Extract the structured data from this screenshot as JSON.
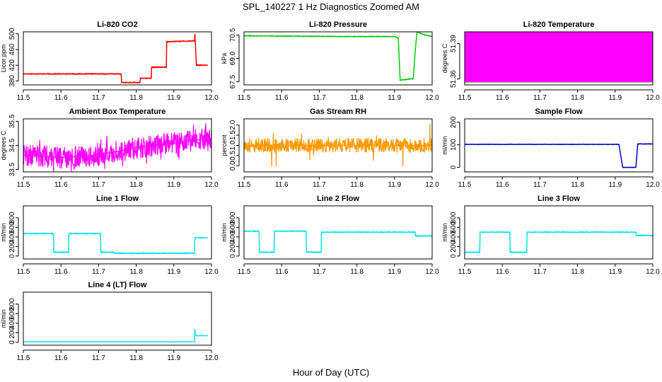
{
  "figure": {
    "title": "SPL_140227  1 Hz Diagnostics Zoomed AM",
    "xlabel": "Hour of Day (UTC)"
  },
  "chart_data": [
    {
      "type": "line",
      "id": "licor-co2",
      "title": "Li-820 CO2",
      "ylabel": "Licor ppm",
      "color": "#ff0000",
      "xlim": [
        11.5,
        12.0
      ],
      "ylim": [
        370,
        505
      ],
      "xticks": [
        "11.5",
        "11.6",
        "11.7",
        "11.8",
        "11.9",
        "12.0"
      ],
      "yticks": [
        "380",
        "420",
        "460",
        "500"
      ],
      "x": [
        11.5,
        11.76,
        11.761,
        11.81,
        11.811,
        11.84,
        11.841,
        11.88,
        11.881,
        11.955,
        11.956,
        11.96,
        11.961,
        11.99
      ],
      "y": [
        398,
        398,
        376,
        376,
        387,
        387,
        415,
        415,
        480,
        482,
        500,
        420,
        420,
        420
      ],
      "noise": 1.5
    },
    {
      "type": "line",
      "id": "licor-pressure",
      "title": "Li-820 Pressure",
      "ylabel": "kPa",
      "color": "#00cc00",
      "xlim": [
        11.5,
        12.0
      ],
      "ylim": [
        67.3,
        70.7
      ],
      "xticks": [
        "11.5",
        "11.6",
        "11.7",
        "11.8",
        "11.9",
        "12.0"
      ],
      "yticks": [
        "67.5",
        "69.0",
        "70.5"
      ],
      "x": [
        11.5,
        11.75,
        11.9,
        11.91,
        11.915,
        11.93,
        11.95,
        11.955,
        11.96,
        11.98,
        12.0
      ],
      "y": [
        70.45,
        70.4,
        70.4,
        70.3,
        67.6,
        67.65,
        67.7,
        69.5,
        70.7,
        70.5,
        70.4
      ],
      "noise": 0.03
    },
    {
      "type": "band",
      "id": "licor-temperature",
      "title": "Li-820 Temperature",
      "ylabel": "degrees C",
      "color": "#ff00ff",
      "xlim": [
        11.5,
        12.0
      ],
      "ylim": [
        51.355,
        51.4
      ],
      "xticks": [
        "11.5",
        "11.6",
        "11.7",
        "11.8",
        "11.9",
        "12.0"
      ],
      "yticks": [
        "51.36",
        "51.39"
      ],
      "x": [
        11.5,
        12.0
      ],
      "ymin": [
        51.357,
        51.357
      ],
      "ymax": [
        51.4,
        51.4
      ]
    },
    {
      "type": "line",
      "id": "ambient-box-temperature",
      "title": "Ambient Box Temperature",
      "ylabel": "degrees C",
      "color": "#ff00ff",
      "xlim": [
        11.5,
        12.0
      ],
      "ylim": [
        33.4,
        35.6
      ],
      "xticks": [
        "11.5",
        "11.6",
        "11.7",
        "11.8",
        "11.9",
        "12.0"
      ],
      "yticks": [
        "33.5",
        "34.5",
        "35.5"
      ],
      "x": [
        11.5,
        11.6,
        11.7,
        11.8,
        11.9,
        12.0
      ],
      "y": [
        34.1,
        34.0,
        34.1,
        34.4,
        34.6,
        34.8
      ],
      "noise": 0.45
    },
    {
      "type": "line",
      "id": "gas-stream-rh",
      "title": "Gas Stream RH",
      "ylabel": "percent",
      "color": "#ff9900",
      "xlim": [
        11.5,
        12.0
      ],
      "ylim": [
        -0.3,
        2.3
      ],
      "xticks": [
        "11.5",
        "11.6",
        "11.7",
        "11.8",
        "11.9",
        "12.0"
      ],
      "yticks": [
        "0.0",
        "0.5",
        "1.0",
        "1.5",
        "2.0"
      ],
      "x": [
        11.5,
        11.6,
        11.7,
        11.8,
        11.9,
        12.0
      ],
      "y": [
        1.0,
        1.0,
        1.0,
        1.0,
        1.0,
        1.0
      ],
      "noise": 0.35
    },
    {
      "type": "line",
      "id": "sample-flow",
      "title": "Sample Flow",
      "ylabel": "ml/min",
      "color": "#0000cc",
      "xlim": [
        11.5,
        12.0
      ],
      "ylim": [
        -20,
        215
      ],
      "xticks": [
        "11.5",
        "11.6",
        "11.7",
        "11.8",
        "11.9",
        "12.0"
      ],
      "yticks": [
        "0",
        "100",
        "200"
      ],
      "x": [
        11.5,
        11.91,
        11.92,
        11.955,
        11.96,
        12.0
      ],
      "y": [
        102,
        102,
        0,
        0,
        104,
        104
      ],
      "noise": 1.5
    },
    {
      "type": "line",
      "id": "line-1-flow",
      "title": "Line 1 Flow",
      "ylabel": "ml/min",
      "color": "#00e5ee",
      "xlim": [
        11.5,
        12.0
      ],
      "ylim": [
        -60,
        1050
      ],
      "xticks": [
        "11.5",
        "11.6",
        "11.7",
        "11.8",
        "11.9",
        "12.0"
      ],
      "yticks": [
        "0",
        "200",
        "400",
        "600",
        "800"
      ],
      "x": [
        11.5,
        11.58,
        11.581,
        11.62,
        11.621,
        11.705,
        11.706,
        11.74,
        11.741,
        11.955,
        11.956,
        11.99
      ],
      "y": [
        470,
        470,
        80,
        80,
        470,
        470,
        80,
        80,
        60,
        60,
        380,
        380
      ],
      "noise": 12
    },
    {
      "type": "line",
      "id": "line-2-flow",
      "title": "Line 2 Flow",
      "ylabel": "ml/min",
      "color": "#00e5ee",
      "xlim": [
        11.5,
        12.0
      ],
      "ylim": [
        -60,
        1050
      ],
      "xticks": [
        "11.5",
        "11.6",
        "11.7",
        "11.8",
        "11.9",
        "12.0"
      ],
      "yticks": [
        "0",
        "200",
        "400",
        "600",
        "800"
      ],
      "x": [
        11.5,
        11.54,
        11.541,
        11.58,
        11.581,
        11.665,
        11.666,
        11.705,
        11.706,
        11.955,
        11.956,
        12.0
      ],
      "y": [
        520,
        520,
        80,
        80,
        520,
        520,
        80,
        80,
        500,
        500,
        420,
        420
      ],
      "noise": 12
    },
    {
      "type": "line",
      "id": "line-3-flow",
      "title": "Line 3 Flow",
      "ylabel": "ml/min",
      "color": "#00e5ee",
      "xlim": [
        11.5,
        12.0
      ],
      "ylim": [
        -60,
        1050
      ],
      "xticks": [
        "11.5",
        "11.6",
        "11.7",
        "11.8",
        "11.9",
        "12.0"
      ],
      "yticks": [
        "0",
        "200",
        "400",
        "600",
        "800"
      ],
      "x": [
        11.5,
        11.54,
        11.541,
        11.62,
        11.621,
        11.665,
        11.666,
        11.955,
        11.956,
        12.0
      ],
      "y": [
        80,
        80,
        500,
        500,
        80,
        80,
        500,
        500,
        430,
        430
      ],
      "noise": 12
    },
    {
      "type": "line",
      "id": "line-4-lt-flow",
      "title": "Line 4 (LT) Flow",
      "ylabel": "ml/min",
      "color": "#00e5ee",
      "xlim": [
        11.5,
        12.0
      ],
      "ylim": [
        -60,
        1050
      ],
      "xticks": [
        "11.5",
        "11.6",
        "11.7",
        "11.8",
        "11.9",
        "12.0"
      ],
      "yticks": [
        "0",
        "200",
        "400",
        "600",
        "800"
      ],
      "x": [
        11.5,
        11.955,
        11.956,
        11.957,
        11.962,
        11.99
      ],
      "y": [
        10,
        10,
        280,
        150,
        140,
        140
      ],
      "noise": 2
    }
  ]
}
